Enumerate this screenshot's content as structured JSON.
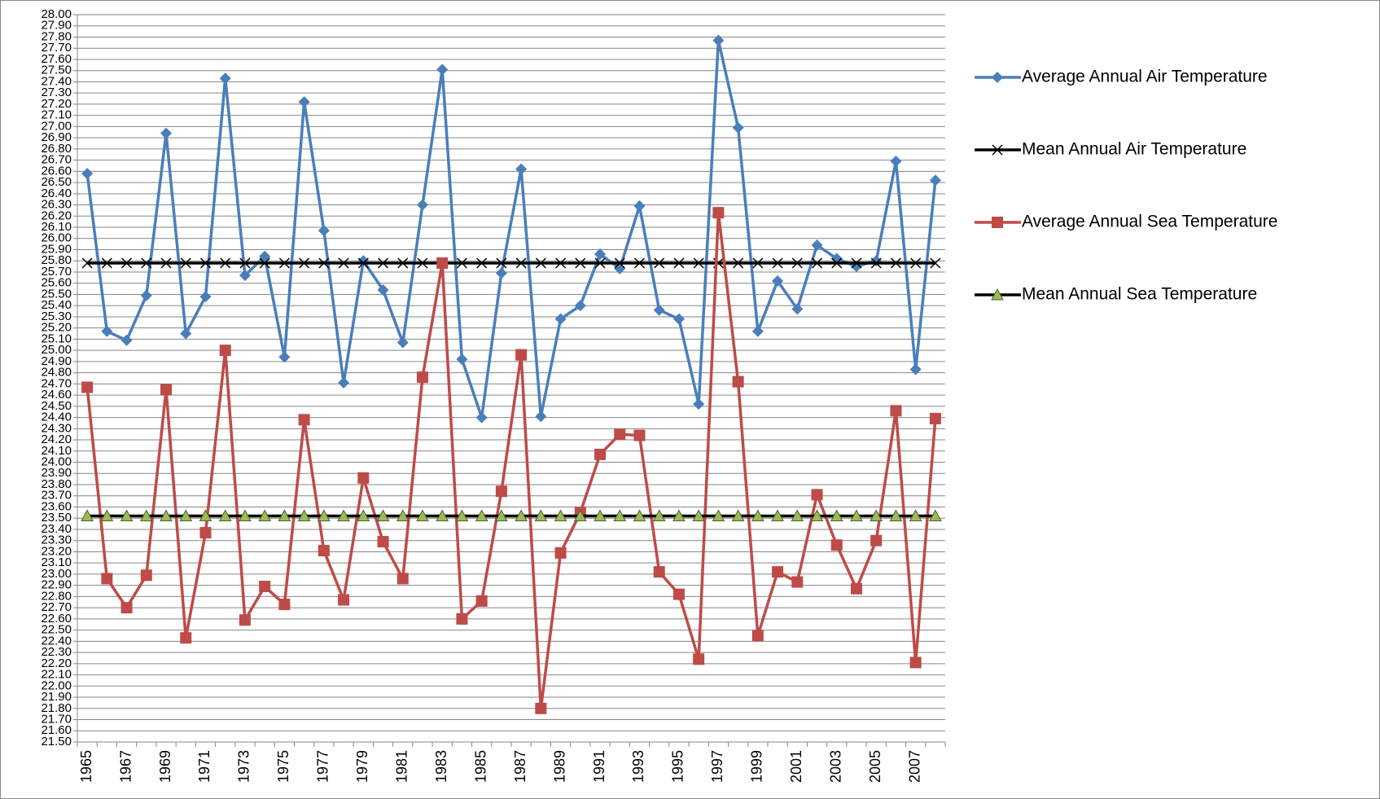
{
  "chart_data": {
    "type": "line",
    "categories": [
      "1965",
      null,
      "1967",
      null,
      "1969",
      null,
      "1971",
      null,
      "1973",
      null,
      "1975",
      null,
      "1977",
      null,
      "1979",
      null,
      "1981",
      null,
      "1983",
      null,
      "1985",
      null,
      "1987",
      null,
      "1989",
      null,
      "1991",
      null,
      "1993",
      null,
      "1995",
      null,
      "1997",
      null,
      "1999",
      null,
      "2001",
      null,
      "2003",
      null,
      "2005",
      null,
      "2007",
      null
    ],
    "series": [
      {
        "name": "Average Annual Air Temperature",
        "color": "#4a7ebb",
        "marker": "diamond",
        "values": [
          26.58,
          25.17,
          25.09,
          25.49,
          26.94,
          25.15,
          25.48,
          27.43,
          25.67,
          25.84,
          24.94,
          27.22,
          26.07,
          24.71,
          25.8,
          25.54,
          25.07,
          26.3,
          27.51,
          24.92,
          24.4,
          25.69,
          26.62,
          24.41,
          25.28,
          25.4,
          25.86,
          25.73,
          26.29,
          25.36,
          25.28,
          24.52,
          27.77,
          26.99,
          25.17,
          25.62,
          25.37,
          25.94,
          25.82,
          25.75,
          25.8,
          26.69,
          24.83,
          26.52
        ]
      },
      {
        "name": "Mean Annual Air Temperature",
        "color": "#000000",
        "marker": "x",
        "values": [
          25.78,
          25.78,
          25.78,
          25.78,
          25.78,
          25.78,
          25.78,
          25.78,
          25.78,
          25.78,
          25.78,
          25.78,
          25.78,
          25.78,
          25.78,
          25.78,
          25.78,
          25.78,
          25.78,
          25.78,
          25.78,
          25.78,
          25.78,
          25.78,
          25.78,
          25.78,
          25.78,
          25.78,
          25.78,
          25.78,
          25.78,
          25.78,
          25.78,
          25.78,
          25.78,
          25.78,
          25.78,
          25.78,
          25.78,
          25.78,
          25.78,
          25.78,
          25.78,
          25.78
        ]
      },
      {
        "name": "Average Annual Sea Temperature",
        "color": "#be4b48",
        "marker": "square",
        "values": [
          24.67,
          22.96,
          22.7,
          22.99,
          24.65,
          22.43,
          23.37,
          25.0,
          22.59,
          22.89,
          22.73,
          24.38,
          23.21,
          22.77,
          23.86,
          23.29,
          22.96,
          24.76,
          25.78,
          22.6,
          22.76,
          23.74,
          24.96,
          21.8,
          23.19,
          23.55,
          24.07,
          24.25,
          24.24,
          23.02,
          22.82,
          22.24,
          26.23,
          24.72,
          22.45,
          23.02,
          22.93,
          23.71,
          23.26,
          22.87,
          23.3,
          24.46,
          22.21,
          24.39
        ]
      },
      {
        "name": "Mean Annual Sea Temperature",
        "color": "#000000",
        "marker": "triangle",
        "marker_color": "#9bbb59",
        "values": [
          23.52,
          23.52,
          23.52,
          23.52,
          23.52,
          23.52,
          23.52,
          23.52,
          23.52,
          23.52,
          23.52,
          23.52,
          23.52,
          23.52,
          23.52,
          23.52,
          23.52,
          23.52,
          23.52,
          23.52,
          23.52,
          23.52,
          23.52,
          23.52,
          23.52,
          23.52,
          23.52,
          23.52,
          23.52,
          23.52,
          23.52,
          23.52,
          23.52,
          23.52,
          23.52,
          23.52,
          23.52,
          23.52,
          23.52,
          23.52,
          23.52,
          23.52,
          23.52,
          23.52
        ]
      }
    ],
    "ylim": [
      21.5,
      28.0
    ],
    "yticks": [
      {
        "value": 21.5,
        "label": "21.50"
      },
      {
        "value": 21.6,
        "label": "21.60"
      },
      {
        "value": 21.7,
        "label": "21.70"
      },
      {
        "value": 21.8,
        "label": "21.80"
      },
      {
        "value": 21.9,
        "label": "21.90"
      },
      {
        "value": 22.0,
        "label": "22.00"
      },
      {
        "value": 22.1,
        "label": "22.10"
      },
      {
        "value": 22.2,
        "label": "22.20"
      },
      {
        "value": 22.3,
        "label": "22.30"
      },
      {
        "value": 22.4,
        "label": "22.40"
      },
      {
        "value": 22.5,
        "label": "22.50"
      },
      {
        "value": 22.6,
        "label": "22.60"
      },
      {
        "value": 22.7,
        "label": "22.70"
      },
      {
        "value": 22.8,
        "label": "22.80"
      },
      {
        "value": 22.9,
        "label": "22.90"
      },
      {
        "value": 23.0,
        "label": "23.00"
      },
      {
        "value": 23.1,
        "label": "23.10"
      },
      {
        "value": 23.2,
        "label": "23.20"
      },
      {
        "value": 23.3,
        "label": "23.30"
      },
      {
        "value": 23.4,
        "label": "23.40"
      },
      {
        "value": 23.5,
        "label": "23.50"
      },
      {
        "value": 23.6,
        "label": "23.60"
      },
      {
        "value": 23.7,
        "label": "23.70"
      },
      {
        "value": 23.8,
        "label": "23.80"
      },
      {
        "value": 23.9,
        "label": "23.90"
      },
      {
        "value": 24.0,
        "label": "24.00"
      },
      {
        "value": 24.1,
        "label": "24.10"
      },
      {
        "value": 24.2,
        "label": "24.20"
      },
      {
        "value": 24.3,
        "label": "24.30"
      },
      {
        "value": 24.4,
        "label": "24.40"
      },
      {
        "value": 24.5,
        "label": "24.50"
      },
      {
        "value": 24.6,
        "label": "24.60"
      },
      {
        "value": 24.7,
        "label": "24.70"
      },
      {
        "value": 24.8,
        "label": "24.80"
      },
      {
        "value": 24.9,
        "label": "24.90"
      },
      {
        "value": 25.0,
        "label": "25.00"
      },
      {
        "value": 25.1,
        "label": "25.10"
      },
      {
        "value": 25.2,
        "label": "25.20"
      },
      {
        "value": 25.3,
        "label": "25.30"
      },
      {
        "value": 25.4,
        "label": "25.40"
      },
      {
        "value": 25.5,
        "label": "25.50"
      },
      {
        "value": 25.6,
        "label": "25.60"
      },
      {
        "value": 25.7,
        "label": "25.70"
      },
      {
        "value": 25.8,
        "label": "25.80"
      },
      {
        "value": 25.9,
        "label": "25.90"
      },
      {
        "value": 26.0,
        "label": "26.00"
      },
      {
        "value": 26.1,
        "label": "26.10"
      },
      {
        "value": 26.2,
        "label": "26.20"
      },
      {
        "value": 26.3,
        "label": "26.30"
      },
      {
        "value": 26.4,
        "label": "26.40"
      },
      {
        "value": 26.5,
        "label": "26.50"
      },
      {
        "value": 26.6,
        "label": "26.60"
      },
      {
        "value": 26.7,
        "label": "26.70"
      },
      {
        "value": 26.8,
        "label": "26.80"
      },
      {
        "value": 26.9,
        "label": "26.90"
      },
      {
        "value": 27.0,
        "label": "27.00"
      },
      {
        "value": 27.1,
        "label": "27.10"
      },
      {
        "value": 27.2,
        "label": "27.20"
      },
      {
        "value": 27.3,
        "label": "27.30"
      },
      {
        "value": 27.4,
        "label": "27.40"
      },
      {
        "value": 27.5,
        "label": "27.50"
      },
      {
        "value": 27.6,
        "label": "27.60"
      },
      {
        "value": 27.7,
        "label": "27.70"
      },
      {
        "value": 27.8,
        "label": "27.80"
      },
      {
        "value": 27.9,
        "label": "27.90"
      },
      {
        "value": 28.0,
        "label": "28.00"
      }
    ],
    "grid": true,
    "legend": "right"
  }
}
